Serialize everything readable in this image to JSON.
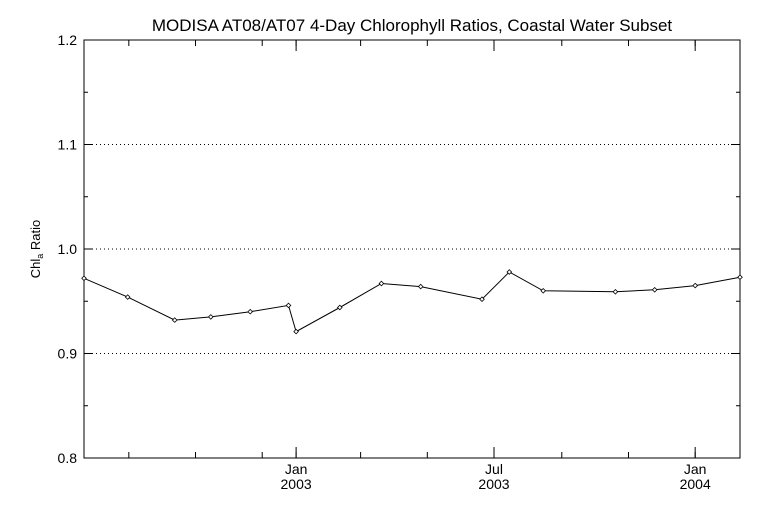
{
  "chart_data": {
    "type": "line",
    "title": "MODISA AT08/AT07 4-Day Chlorophyll Ratios, Coastal Water Subset",
    "ylabel_main": "Chl",
    "ylabel_sub": "a",
    "ylabel_rest": " Ratio",
    "xlabel": "",
    "ylim": [
      0.8,
      1.2
    ],
    "y_ticks": [
      "0.8",
      "0.9",
      "1.0",
      "1.1",
      "1.2"
    ],
    "x_range": [
      "2002-06-21",
      "2004-02-11"
    ],
    "x_major_ticks": [
      {
        "date": "2003-01-01",
        "month": "Jan",
        "year": "2003"
      },
      {
        "date": "2003-07-01",
        "month": "Jul",
        "year": "2003"
      },
      {
        "date": "2004-01-01",
        "month": "Jan",
        "year": "2004"
      }
    ],
    "x_minor_ticks": [
      "2002-08-01",
      "2002-10-01",
      "2002-12-01",
      "2003-01-01",
      "2003-03-01",
      "2003-05-01",
      "2003-07-01",
      "2003-09-01",
      "2003-11-01",
      "2004-01-01"
    ],
    "grid": "horizontal dotted at 0.9, 1.0, 1.1",
    "points": [
      {
        "date": "2002-06-21",
        "value": 0.972
      },
      {
        "date": "2002-07-31",
        "value": 0.954
      },
      {
        "date": "2002-09-12",
        "value": 0.932
      },
      {
        "date": "2002-10-15",
        "value": 0.935
      },
      {
        "date": "2002-11-20",
        "value": 0.94
      },
      {
        "date": "2002-12-25",
        "value": 0.946
      },
      {
        "date": "2003-01-01",
        "value": 0.921
      },
      {
        "date": "2003-02-10",
        "value": 0.944
      },
      {
        "date": "2003-03-20",
        "value": 0.967
      },
      {
        "date": "2003-04-25",
        "value": 0.964
      },
      {
        "date": "2003-06-20",
        "value": 0.952
      },
      {
        "date": "2003-07-15",
        "value": 0.978
      },
      {
        "date": "2003-08-15",
        "value": 0.96
      },
      {
        "date": "2003-10-20",
        "value": 0.959
      },
      {
        "date": "2003-11-25",
        "value": 0.961
      },
      {
        "date": "2004-01-01",
        "value": 0.965
      },
      {
        "date": "2004-02-11",
        "value": 0.973
      }
    ]
  }
}
